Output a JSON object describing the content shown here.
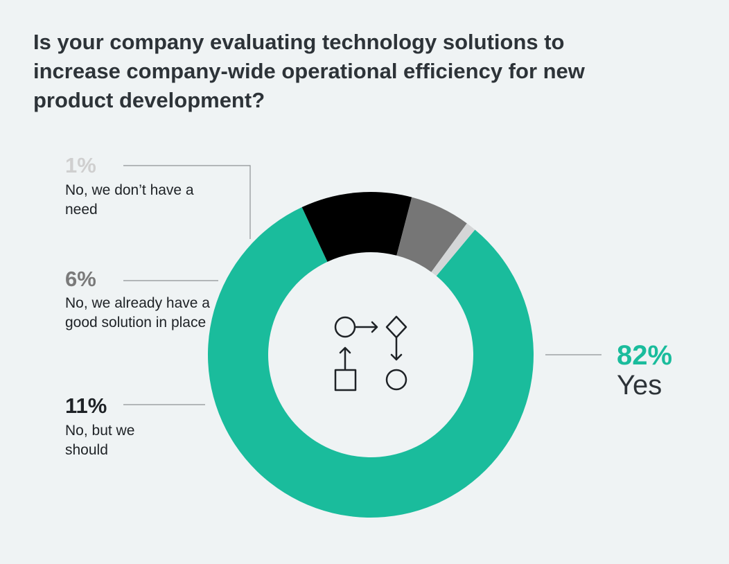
{
  "chart_data": {
    "type": "pie",
    "title": "Is your company evaluating technology solutions to increase company-wide operational efficiency for new product development?",
    "series": [
      {
        "name": "Yes",
        "value": 82,
        "pct_label": "82%",
        "label": "Yes",
        "color": "#1abc9c"
      },
      {
        "name": "No, but we should",
        "value": 11,
        "pct_label": "11%",
        "label": "No, but we should",
        "color": "#000000"
      },
      {
        "name": "No, we already have a good solution in place",
        "value": 6,
        "pct_label": "6%",
        "label": "No, we already have a good solution in place",
        "color": "#767676"
      },
      {
        "name": "No, we don't have a need",
        "value": 1,
        "pct_label": "1%",
        "label": "No, we don’t have a need",
        "color": "#d4d6d7"
      }
    ],
    "center_icon": "process-flow-icon"
  },
  "colors": {
    "background": "#eff3f4",
    "title": "#2d3338",
    "leader_line": "#8e9193",
    "icon": "#1e2226",
    "yes_pct": "#1abc9c",
    "should_pct": "#1e2226",
    "already_pct": "#7a7a7a",
    "no_need_pct": "#cfcfcf"
  }
}
